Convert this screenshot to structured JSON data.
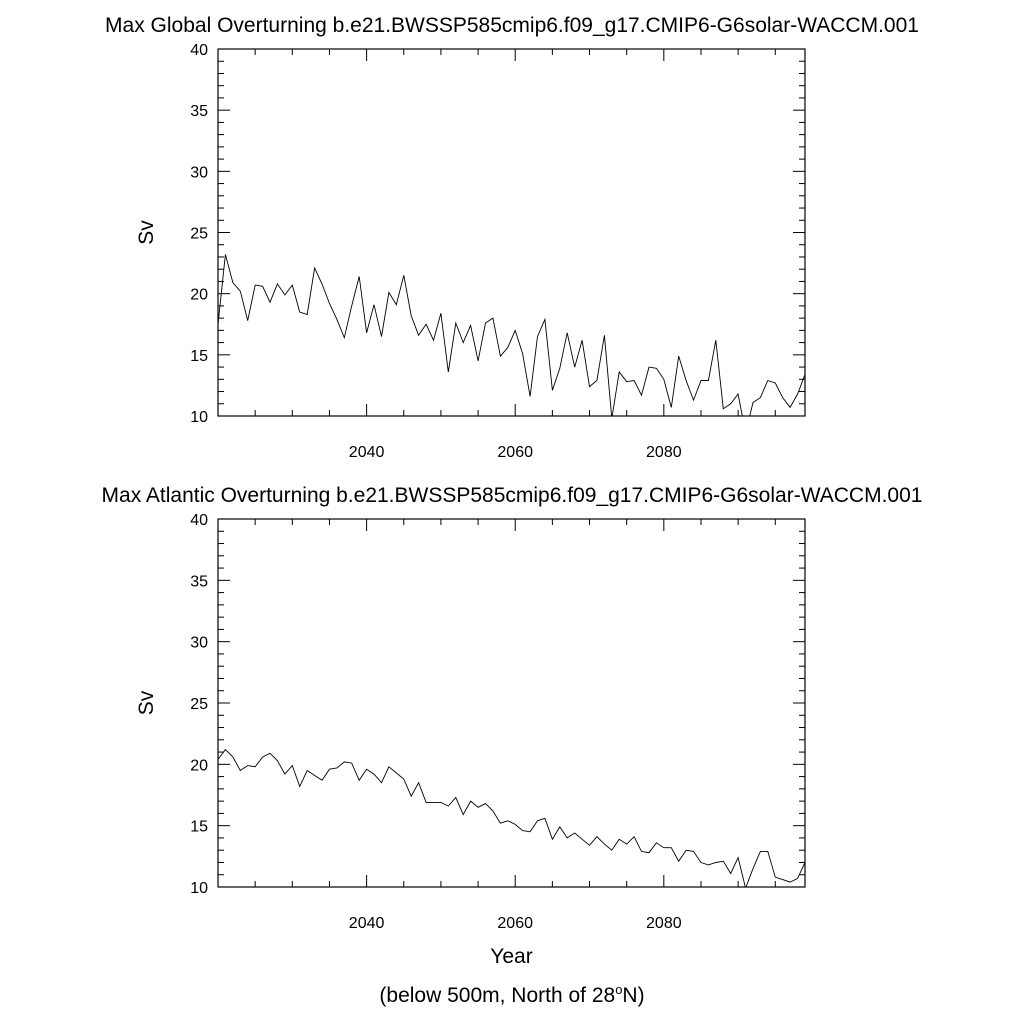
{
  "chart_data": [
    {
      "type": "line",
      "title": "Max Global Overturning b.e21.BWSSP585cmip6.f09_g17.CMIP6-G6solar-WACCM.001",
      "ylabel": "Sv",
      "xlabel": "",
      "xlim": [
        2020,
        2099
      ],
      "ylim": [
        10,
        40
      ],
      "xticks": [
        2040,
        2060,
        2080
      ],
      "yticks": [
        10,
        15,
        20,
        25,
        30,
        35,
        40
      ],
      "x": [
        2020,
        2021,
        2022,
        2023,
        2024,
        2025,
        2026,
        2027,
        2028,
        2029,
        2030,
        2031,
        2032,
        2033,
        2034,
        2035,
        2036,
        2037,
        2038,
        2039,
        2040,
        2041,
        2042,
        2043,
        2044,
        2045,
        2046,
        2047,
        2048,
        2049,
        2050,
        2051,
        2052,
        2053,
        2054,
        2055,
        2056,
        2057,
        2058,
        2059,
        2060,
        2061,
        2062,
        2063,
        2064,
        2065,
        2066,
        2067,
        2068,
        2069,
        2070,
        2071,
        2072,
        2073,
        2074,
        2075,
        2076,
        2077,
        2078,
        2079,
        2080,
        2081,
        2082,
        2083,
        2084,
        2085,
        2086,
        2087,
        2088,
        2089,
        2090,
        2091,
        2092,
        2093,
        2094,
        2095,
        2096,
        2097,
        2098,
        2099
      ],
      "series": [
        {
          "values": [
            17.5,
            23.2,
            20.9,
            20.2,
            17.8,
            20.7,
            20.6,
            19.3,
            20.8,
            19.9,
            20.7,
            18.5,
            18.3,
            22.1,
            20.8,
            19.2,
            17.9,
            16.4,
            19.0,
            21.4,
            16.8,
            19.1,
            16.5,
            20.1,
            19.1,
            21.5,
            18.2,
            16.6,
            17.5,
            16.2,
            18.4,
            13.6,
            17.6,
            16.0,
            17.4,
            14.5,
            17.6,
            18.0,
            14.9,
            15.6,
            17.0,
            15.1,
            11.6,
            16.5,
            17.9,
            12.1,
            13.9,
            16.8,
            14.0,
            16.2,
            12.4,
            12.9,
            16.6,
            9.8,
            13.6,
            12.8,
            12.9,
            11.7,
            14.0,
            13.9,
            13.0,
            10.7,
            14.9,
            12.9,
            11.3,
            12.9,
            12.9,
            16.2,
            10.6,
            11.0,
            11.8,
            8.6,
            11.1,
            11.5,
            12.9,
            12.7,
            11.5,
            10.7,
            11.8,
            13.4
          ]
        }
      ]
    },
    {
      "type": "line",
      "title": "Max Atlantic Overturning b.e21.BWSSP585cmip6.f09_g17.CMIP6-G6solar-WACCM.001",
      "ylabel": "Sv",
      "xlabel": "Year",
      "xlim": [
        2020,
        2099
      ],
      "ylim": [
        10,
        40
      ],
      "xticks": [
        2040,
        2060,
        2080
      ],
      "yticks": [
        10,
        15,
        20,
        25,
        30,
        35,
        40
      ],
      "x": [
        2020,
        2021,
        2022,
        2023,
        2024,
        2025,
        2026,
        2027,
        2028,
        2029,
        2030,
        2031,
        2032,
        2033,
        2034,
        2035,
        2036,
        2037,
        2038,
        2039,
        2040,
        2041,
        2042,
        2043,
        2044,
        2045,
        2046,
        2047,
        2048,
        2049,
        2050,
        2051,
        2052,
        2053,
        2054,
        2055,
        2056,
        2057,
        2058,
        2059,
        2060,
        2061,
        2062,
        2063,
        2064,
        2065,
        2066,
        2067,
        2068,
        2069,
        2070,
        2071,
        2072,
        2073,
        2074,
        2075,
        2076,
        2077,
        2078,
        2079,
        2080,
        2081,
        2082,
        2083,
        2084,
        2085,
        2086,
        2087,
        2088,
        2089,
        2090,
        2091,
        2092,
        2093,
        2094,
        2095,
        2096,
        2097,
        2098,
        2099
      ],
      "series": [
        {
          "values": [
            20.4,
            21.2,
            20.6,
            19.5,
            19.9,
            19.8,
            20.6,
            20.9,
            20.3,
            19.2,
            19.9,
            18.2,
            19.5,
            19.1,
            18.7,
            19.6,
            19.7,
            20.2,
            20.1,
            18.7,
            19.6,
            19.2,
            18.5,
            19.8,
            19.3,
            18.8,
            17.4,
            18.5,
            16.9,
            16.9,
            16.9,
            16.6,
            17.3,
            15.9,
            17.0,
            16.5,
            16.8,
            16.2,
            15.2,
            15.4,
            15.1,
            14.6,
            14.5,
            15.4,
            15.6,
            13.9,
            14.9,
            14.0,
            14.4,
            13.9,
            13.4,
            14.1,
            13.5,
            13.0,
            13.9,
            13.5,
            14.1,
            12.9,
            12.8,
            13.6,
            13.2,
            13.2,
            12.1,
            13.0,
            12.9,
            12.0,
            11.8,
            12.0,
            12.1,
            11.1,
            12.4,
            9.9,
            11.5,
            12.9,
            12.9,
            10.8,
            10.6,
            10.4,
            10.7,
            12.0
          ]
        }
      ]
    }
  ],
  "footnote": {
    "prefix": "(below 500m, North of 28",
    "degree": "o",
    "suffix": "N)"
  }
}
